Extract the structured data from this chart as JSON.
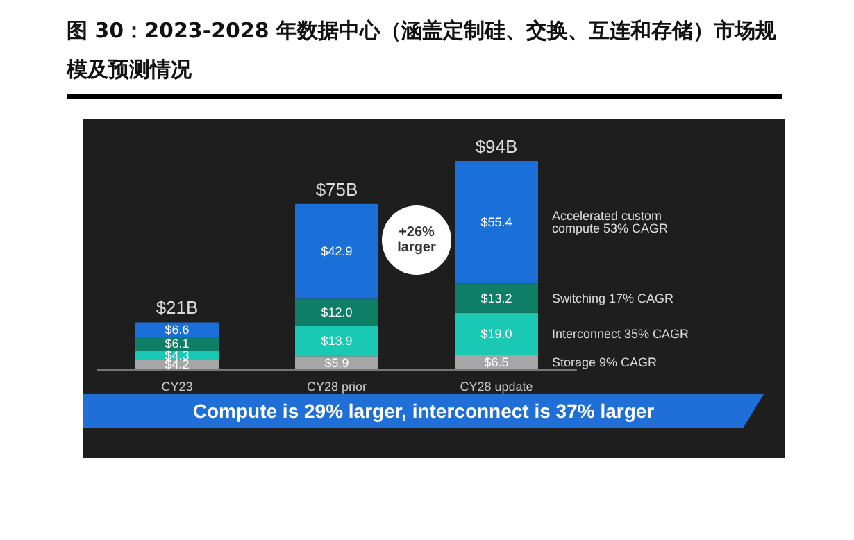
{
  "chart_data": {
    "type": "bar",
    "title": "图 30：2023-2028 年数据中心（涵盖定制硅、交换、互连和存储）市场规模及预测情况",
    "categories": [
      "CY23",
      "CY28 prior",
      "CY28 update"
    ],
    "stacked": true,
    "series": [
      {
        "name": "Storage 9% CAGR",
        "color": "#a6a6a6",
        "values": [
          4.2,
          5.9,
          6.5
        ],
        "value_labels": [
          "$4.2",
          "$5.9",
          "$6.5"
        ]
      },
      {
        "name": "Interconnect 35% CAGR",
        "color": "#19c9b3",
        "values": [
          4.3,
          13.9,
          19.0
        ],
        "value_labels": [
          "$4.3",
          "$13.9",
          "$19.0"
        ]
      },
      {
        "name": "Switching 17% CAGR",
        "color": "#0e7f66",
        "values": [
          6.1,
          12.0,
          13.2
        ],
        "value_labels": [
          "$6.1",
          "$12.0",
          "$13.2"
        ]
      },
      {
        "name": "Accelerated custom compute 53% CAGR",
        "color": "#1a6fd8",
        "values": [
          6.6,
          42.9,
          55.4
        ],
        "value_labels": [
          "$6.6",
          "$42.9",
          "$55.4"
        ]
      }
    ],
    "totals": [
      "$21B",
      "$75B",
      "$94B"
    ],
    "annotations": [
      "+26% larger",
      "Compute is 29% larger, interconnect is 37% larger"
    ],
    "legend": false,
    "grid": false
  }
}
